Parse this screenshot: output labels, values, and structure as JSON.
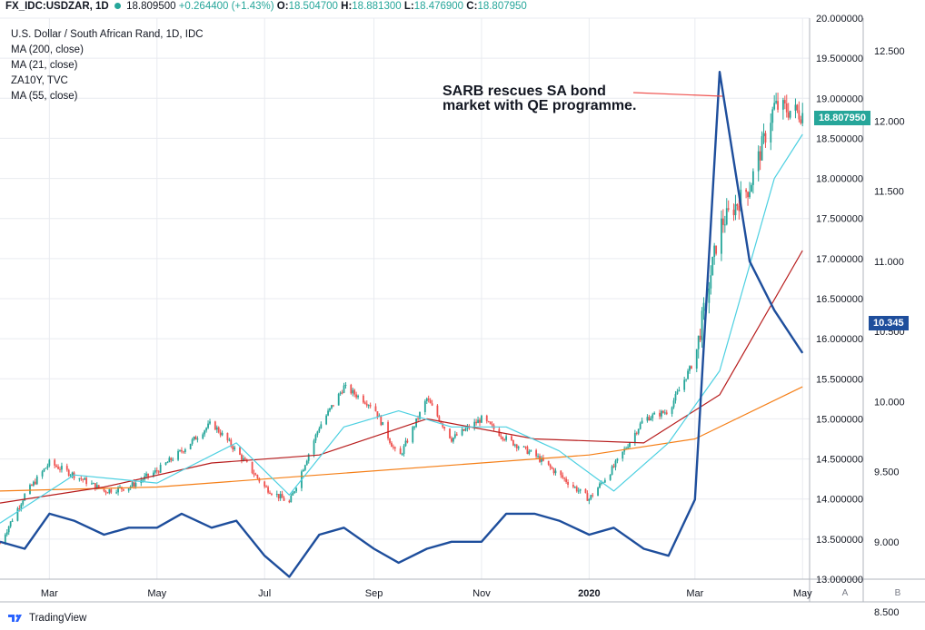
{
  "header": {
    "symbol": "FX_IDC:USDZAR, 1D",
    "last": "18.809500",
    "change": "+0.264400 (+1.43%)",
    "o_label": "O:",
    "o_value": "18.504700",
    "h_label": "H:",
    "h_value": "18.881300",
    "l_label": "L:",
    "l_value": "18.476900",
    "c_label": "C:",
    "c_value": "18.807950"
  },
  "legend": {
    "title": "U.S. Dollar / South African Rand, 1D, IDC",
    "items": [
      "MA (200, close)",
      "MA (21, close)",
      "ZA10Y, TVC",
      "MA (55, close)"
    ]
  },
  "annotation": {
    "line1": "SARB rescues SA bond",
    "line2": "market with QE programme."
  },
  "price_tags": {
    "usdzar": "18.807950",
    "za10y": "10.345"
  },
  "axis_buttons": {
    "a": "A",
    "b": "B"
  },
  "branding": {
    "name": "TradingView"
  },
  "colors": {
    "up": "#26a69a",
    "down": "#ef5350",
    "ma200": "#f57f17",
    "ma21": "#4dd0e1",
    "ma55": "#b71c1c",
    "za10y": "#1e4e9c",
    "grid": "#e9ebf0"
  },
  "chart_data": {
    "type": "line",
    "x_axis": {
      "tick_labels": [
        "Mar",
        "May",
        "Jul",
        "Sep",
        "Nov",
        "2020",
        "Mar",
        "May"
      ],
      "range": [
        "2019-02-01",
        "2020-05-05"
      ]
    },
    "y_axis_left": {
      "label": "",
      "range": [
        13.0,
        20.0
      ],
      "ticks": [
        "13.000000",
        "13.500000",
        "14.000000",
        "14.500000",
        "15.000000",
        "15.500000",
        "16.000000",
        "16.500000",
        "17.000000",
        "17.500000",
        "18.000000",
        "18.500000",
        "19.000000",
        "19.500000",
        "20.000000"
      ]
    },
    "y_axis_right": {
      "label": "",
      "range": [
        8.5,
        12.5
      ],
      "ticks": [
        "8.500",
        "9.000",
        "9.500",
        "10.000",
        "10.500",
        "11.000",
        "11.500",
        "12.000",
        "12.500"
      ]
    },
    "series": [
      {
        "name": "USDZAR",
        "axis": "left",
        "x": [
          "2019-02-01",
          "2019-02-15",
          "2019-03-01",
          "2019-03-15",
          "2019-04-01",
          "2019-04-15",
          "2019-05-01",
          "2019-05-15",
          "2019-06-01",
          "2019-06-15",
          "2019-07-01",
          "2019-07-15",
          "2019-08-01",
          "2019-08-15",
          "2019-09-01",
          "2019-09-15",
          "2019-10-01",
          "2019-10-15",
          "2019-11-01",
          "2019-11-15",
          "2019-12-01",
          "2019-12-15",
          "2020-01-01",
          "2020-01-15",
          "2020-02-01",
          "2020-02-15",
          "2020-03-01",
          "2020-03-15",
          "2020-04-01",
          "2020-04-15",
          "2020-05-01"
        ],
        "values": [
          13.45,
          14.05,
          14.45,
          14.3,
          14.1,
          14.15,
          14.35,
          14.6,
          14.95,
          14.6,
          14.15,
          13.95,
          14.9,
          15.4,
          15.15,
          14.5,
          15.25,
          14.75,
          15.0,
          14.75,
          14.55,
          14.3,
          14.0,
          14.4,
          15.0,
          15.1,
          15.75,
          17.4,
          17.9,
          18.9,
          18.81
        ]
      },
      {
        "name": "ZA10Y",
        "axis": "right",
        "x": [
          "2019-02-01",
          "2019-02-15",
          "2019-03-01",
          "2019-03-15",
          "2019-04-01",
          "2019-04-15",
          "2019-05-01",
          "2019-05-15",
          "2019-06-01",
          "2019-06-15",
          "2019-07-01",
          "2019-07-15",
          "2019-08-01",
          "2019-08-15",
          "2019-09-01",
          "2019-09-15",
          "2019-10-01",
          "2019-10-15",
          "2019-11-01",
          "2019-11-15",
          "2019-12-01",
          "2019-12-15",
          "2020-01-01",
          "2020-01-15",
          "2020-02-01",
          "2020-02-15",
          "2020-03-01",
          "2020-03-15",
          "2020-04-01",
          "2020-04-15",
          "2020-05-01"
        ],
        "values": [
          9.0,
          8.95,
          9.2,
          9.15,
          9.05,
          9.1,
          9.1,
          9.2,
          9.1,
          9.15,
          8.9,
          8.75,
          9.05,
          9.1,
          8.95,
          8.85,
          8.95,
          9.0,
          9.0,
          9.2,
          9.2,
          9.15,
          9.05,
          9.1,
          8.95,
          8.9,
          9.3,
          12.35,
          11.0,
          10.65,
          10.345
        ]
      },
      {
        "name": "MA (200, close)",
        "axis": "left",
        "x": [
          "2019-02-01",
          "2019-05-01",
          "2019-08-01",
          "2019-11-01",
          "2020-01-01",
          "2020-03-01",
          "2020-05-01"
        ],
        "values": [
          14.1,
          14.15,
          14.3,
          14.45,
          14.55,
          14.75,
          15.4
        ]
      },
      {
        "name": "MA (55, close)",
        "axis": "left",
        "x": [
          "2019-02-01",
          "2019-04-01",
          "2019-06-01",
          "2019-08-01",
          "2019-10-01",
          "2019-12-01",
          "2020-02-01",
          "2020-03-15",
          "2020-05-01"
        ],
        "values": [
          13.95,
          14.15,
          14.45,
          14.55,
          15.0,
          14.75,
          14.7,
          15.3,
          17.1
        ]
      },
      {
        "name": "MA (21, close)",
        "axis": "left",
        "x": [
          "2019-02-01",
          "2019-03-15",
          "2019-05-01",
          "2019-06-15",
          "2019-07-15",
          "2019-08-15",
          "2019-09-15",
          "2019-10-15",
          "2019-11-15",
          "2019-12-15",
          "2020-01-15",
          "2020-02-15",
          "2020-03-15",
          "2020-04-15",
          "2020-05-01"
        ],
        "values": [
          13.7,
          14.3,
          14.2,
          14.7,
          14.05,
          14.9,
          15.1,
          14.9,
          14.9,
          14.6,
          14.1,
          14.7,
          15.6,
          18.0,
          18.55
        ]
      }
    ],
    "annotation": "SARB rescues SA bond market with QE programme.",
    "grid": true,
    "legend_position": "top-left"
  }
}
